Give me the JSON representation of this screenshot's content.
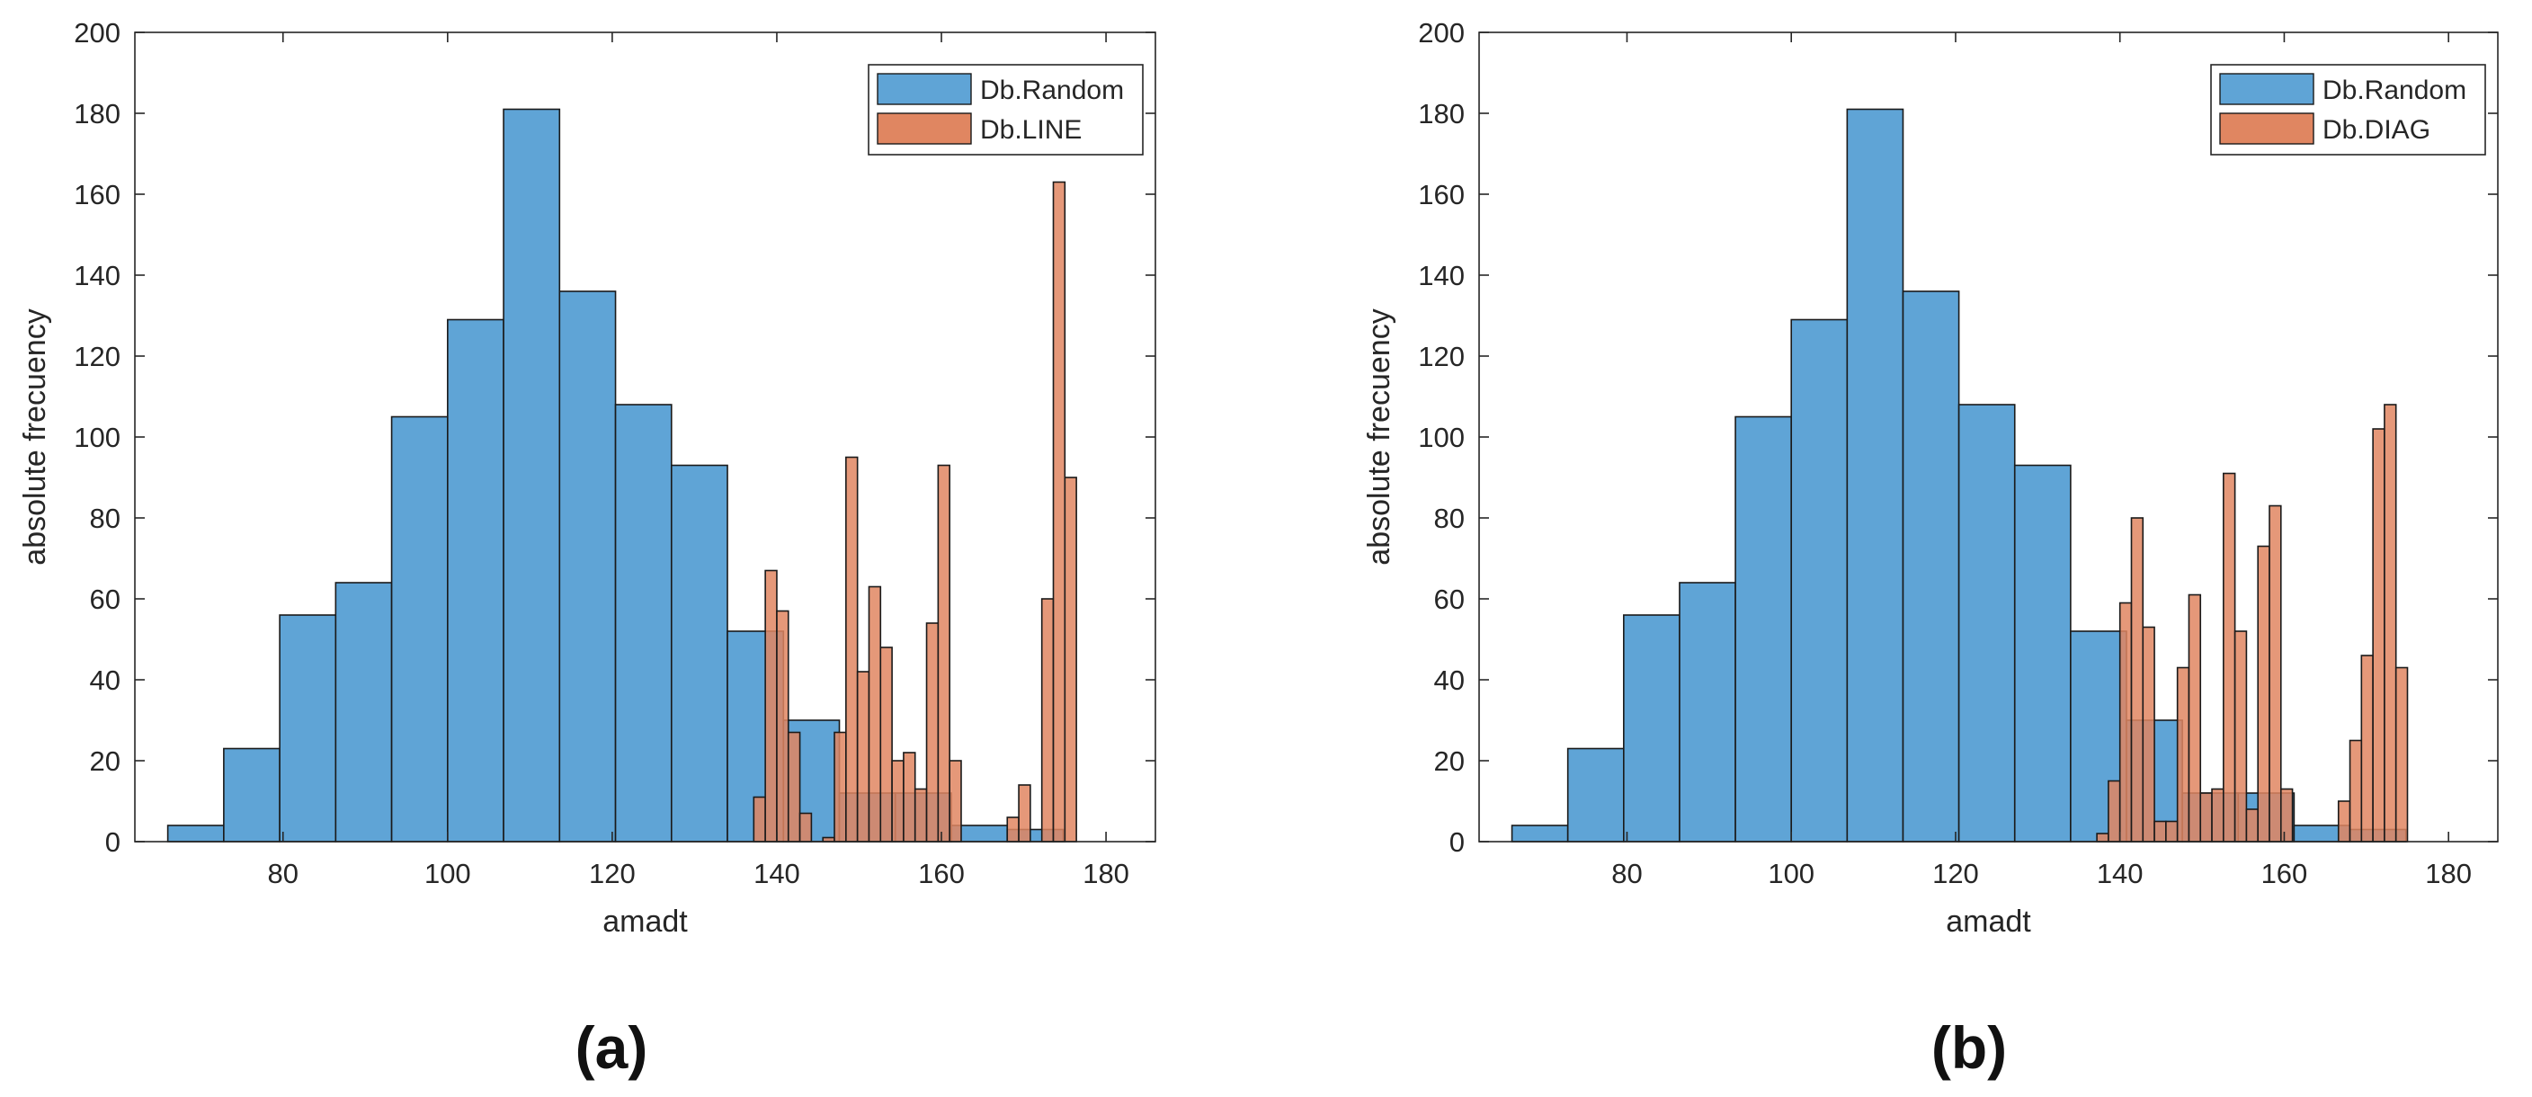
{
  "chart_data": [
    {
      "type": "histogram",
      "panel_label": "(a)",
      "xlabel": "amadt",
      "ylabel": "absolute frecuency",
      "xlim": [
        62,
        186
      ],
      "ylim": [
        0,
        200
      ],
      "xticks": [
        80,
        100,
        120,
        140,
        160,
        180
      ],
      "yticks": [
        0,
        20,
        40,
        60,
        80,
        100,
        120,
        140,
        160,
        180,
        200
      ],
      "legend_position": "top-right",
      "series": [
        {
          "name": "Db.Random",
          "color": "#5fa4d6",
          "bin_start": 66,
          "bin_width": 6.8,
          "counts": [
            4,
            23,
            56,
            64,
            105,
            129,
            181,
            136,
            108,
            93,
            52,
            30,
            12,
            12,
            4,
            3
          ]
        },
        {
          "name": "Db.LINE",
          "color": "#e08661",
          "bin_start": 137.2,
          "bin_width": 1.4,
          "counts": [
            11,
            67,
            57,
            27,
            7,
            0,
            1,
            27,
            95,
            42,
            63,
            48,
            20,
            22,
            13,
            54,
            93,
            20,
            0,
            0,
            0,
            0,
            6,
            14,
            0,
            60,
            163,
            90
          ]
        }
      ]
    },
    {
      "type": "histogram",
      "panel_label": "(b)",
      "xlabel": "amadt",
      "ylabel": "absolute frecuency",
      "xlim": [
        62,
        186
      ],
      "ylim": [
        0,
        200
      ],
      "xticks": [
        80,
        100,
        120,
        140,
        160,
        180
      ],
      "yticks": [
        0,
        20,
        40,
        60,
        80,
        100,
        120,
        140,
        160,
        180,
        200
      ],
      "legend_position": "top-right",
      "series": [
        {
          "name": "Db.Random",
          "color": "#5fa4d6",
          "bin_start": 66,
          "bin_width": 6.8,
          "counts": [
            4,
            23,
            56,
            64,
            105,
            129,
            181,
            136,
            108,
            93,
            52,
            30,
            12,
            12,
            4,
            3
          ]
        },
        {
          "name": "Db.DIAG",
          "color": "#e08661",
          "bin_start": 137.2,
          "bin_width": 1.4,
          "counts": [
            2,
            15,
            59,
            80,
            53,
            5,
            5,
            43,
            61,
            12,
            13,
            91,
            52,
            8,
            73,
            83,
            13,
            0,
            0,
            0,
            0,
            10,
            25,
            46,
            102,
            108,
            43
          ]
        }
      ]
    }
  ]
}
